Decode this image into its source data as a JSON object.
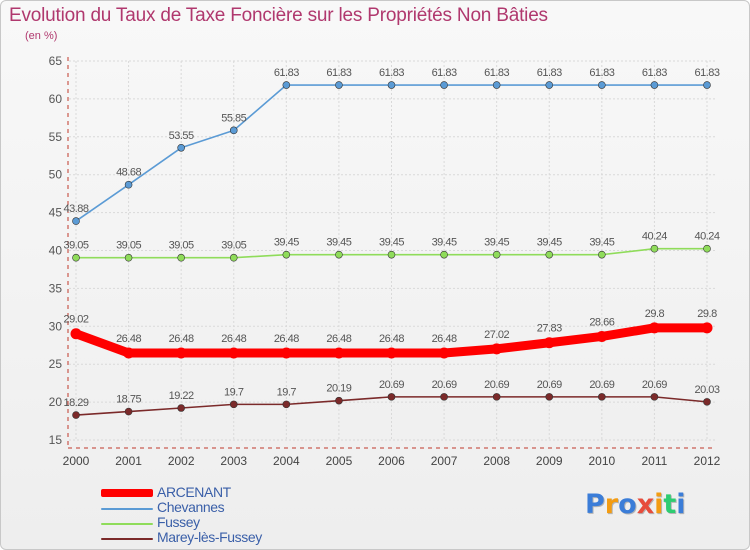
{
  "title": "Evolution du Taux de Taxe Foncière sur les Propriétés Non Bâties",
  "unit_label": "(en %)",
  "colors": {
    "title": "#b0386e",
    "legend_text": "#3a5fa8",
    "axis": "#c0392b",
    "grid": "#d9d9d9"
  },
  "chart_data": {
    "type": "line",
    "x": [
      "2000",
      "2001",
      "2002",
      "2003",
      "2004",
      "2005",
      "2006",
      "2007",
      "2008",
      "2009",
      "2010",
      "2011",
      "2012"
    ],
    "ylim": [
      15,
      65
    ],
    "yticks": [
      "15",
      "20",
      "25",
      "30",
      "35",
      "40",
      "45",
      "50",
      "55",
      "60",
      "65"
    ],
    "grid": true,
    "legend_position": "bottom-left",
    "series": [
      {
        "name": "ARCENANT",
        "color": "#ff0000",
        "highlight": true,
        "values": [
          29.02,
          26.48,
          26.48,
          26.48,
          26.48,
          26.48,
          26.48,
          26.48,
          27.02,
          27.83,
          28.66,
          29.8,
          29.8
        ],
        "labels": [
          "29.02",
          "26.48",
          "26.48",
          "26.48",
          "26.48",
          "26.48",
          "26.48",
          "26.48",
          "27.02",
          "27.83",
          "28.66",
          "29.8",
          "29.8"
        ]
      },
      {
        "name": "Chevannes",
        "color": "#5b9bd5",
        "highlight": false,
        "values": [
          43.88,
          48.68,
          53.55,
          55.85,
          61.83,
          61.83,
          61.83,
          61.83,
          61.83,
          61.83,
          61.83,
          61.83,
          61.83
        ],
        "labels": [
          "43.88",
          "48.68",
          "53.55",
          "55.85",
          "61.83",
          "61.83",
          "61.83",
          "61.83",
          "61.83",
          "61.83",
          "61.83",
          "61.83",
          "61.83"
        ]
      },
      {
        "name": "Fussey",
        "color": "#8fdc5a",
        "highlight": false,
        "values": [
          39.05,
          39.05,
          39.05,
          39.05,
          39.45,
          39.45,
          39.45,
          39.45,
          39.45,
          39.45,
          39.45,
          40.24,
          40.24
        ],
        "labels": [
          "39.05",
          "39.05",
          "39.05",
          "39.05",
          "39.45",
          "39.45",
          "39.45",
          "39.45",
          "39.45",
          "39.45",
          "39.45",
          "40.24",
          "40.24"
        ]
      },
      {
        "name": "Marey-lès-Fussey",
        "color": "#7b2a2a",
        "highlight": false,
        "values": [
          18.29,
          18.75,
          19.22,
          19.7,
          19.7,
          20.19,
          20.69,
          20.69,
          20.69,
          20.69,
          20.69,
          20.69,
          20.03
        ],
        "labels": [
          "18.29",
          "18.75",
          "19.22",
          "19.7",
          "19.7",
          "20.19",
          "20.69",
          "20.69",
          "20.69",
          "20.69",
          "20.69",
          "20.69",
          "20.03"
        ]
      }
    ]
  },
  "logo": {
    "letters": [
      "P",
      "r",
      "o",
      "x",
      "i",
      "t",
      "i"
    ],
    "colors": [
      "#3b7dd8",
      "#f39c12",
      "#3b7dd8",
      "#e74c3c",
      "#f39c12",
      "#2ecc71",
      "#3b7dd8"
    ]
  }
}
